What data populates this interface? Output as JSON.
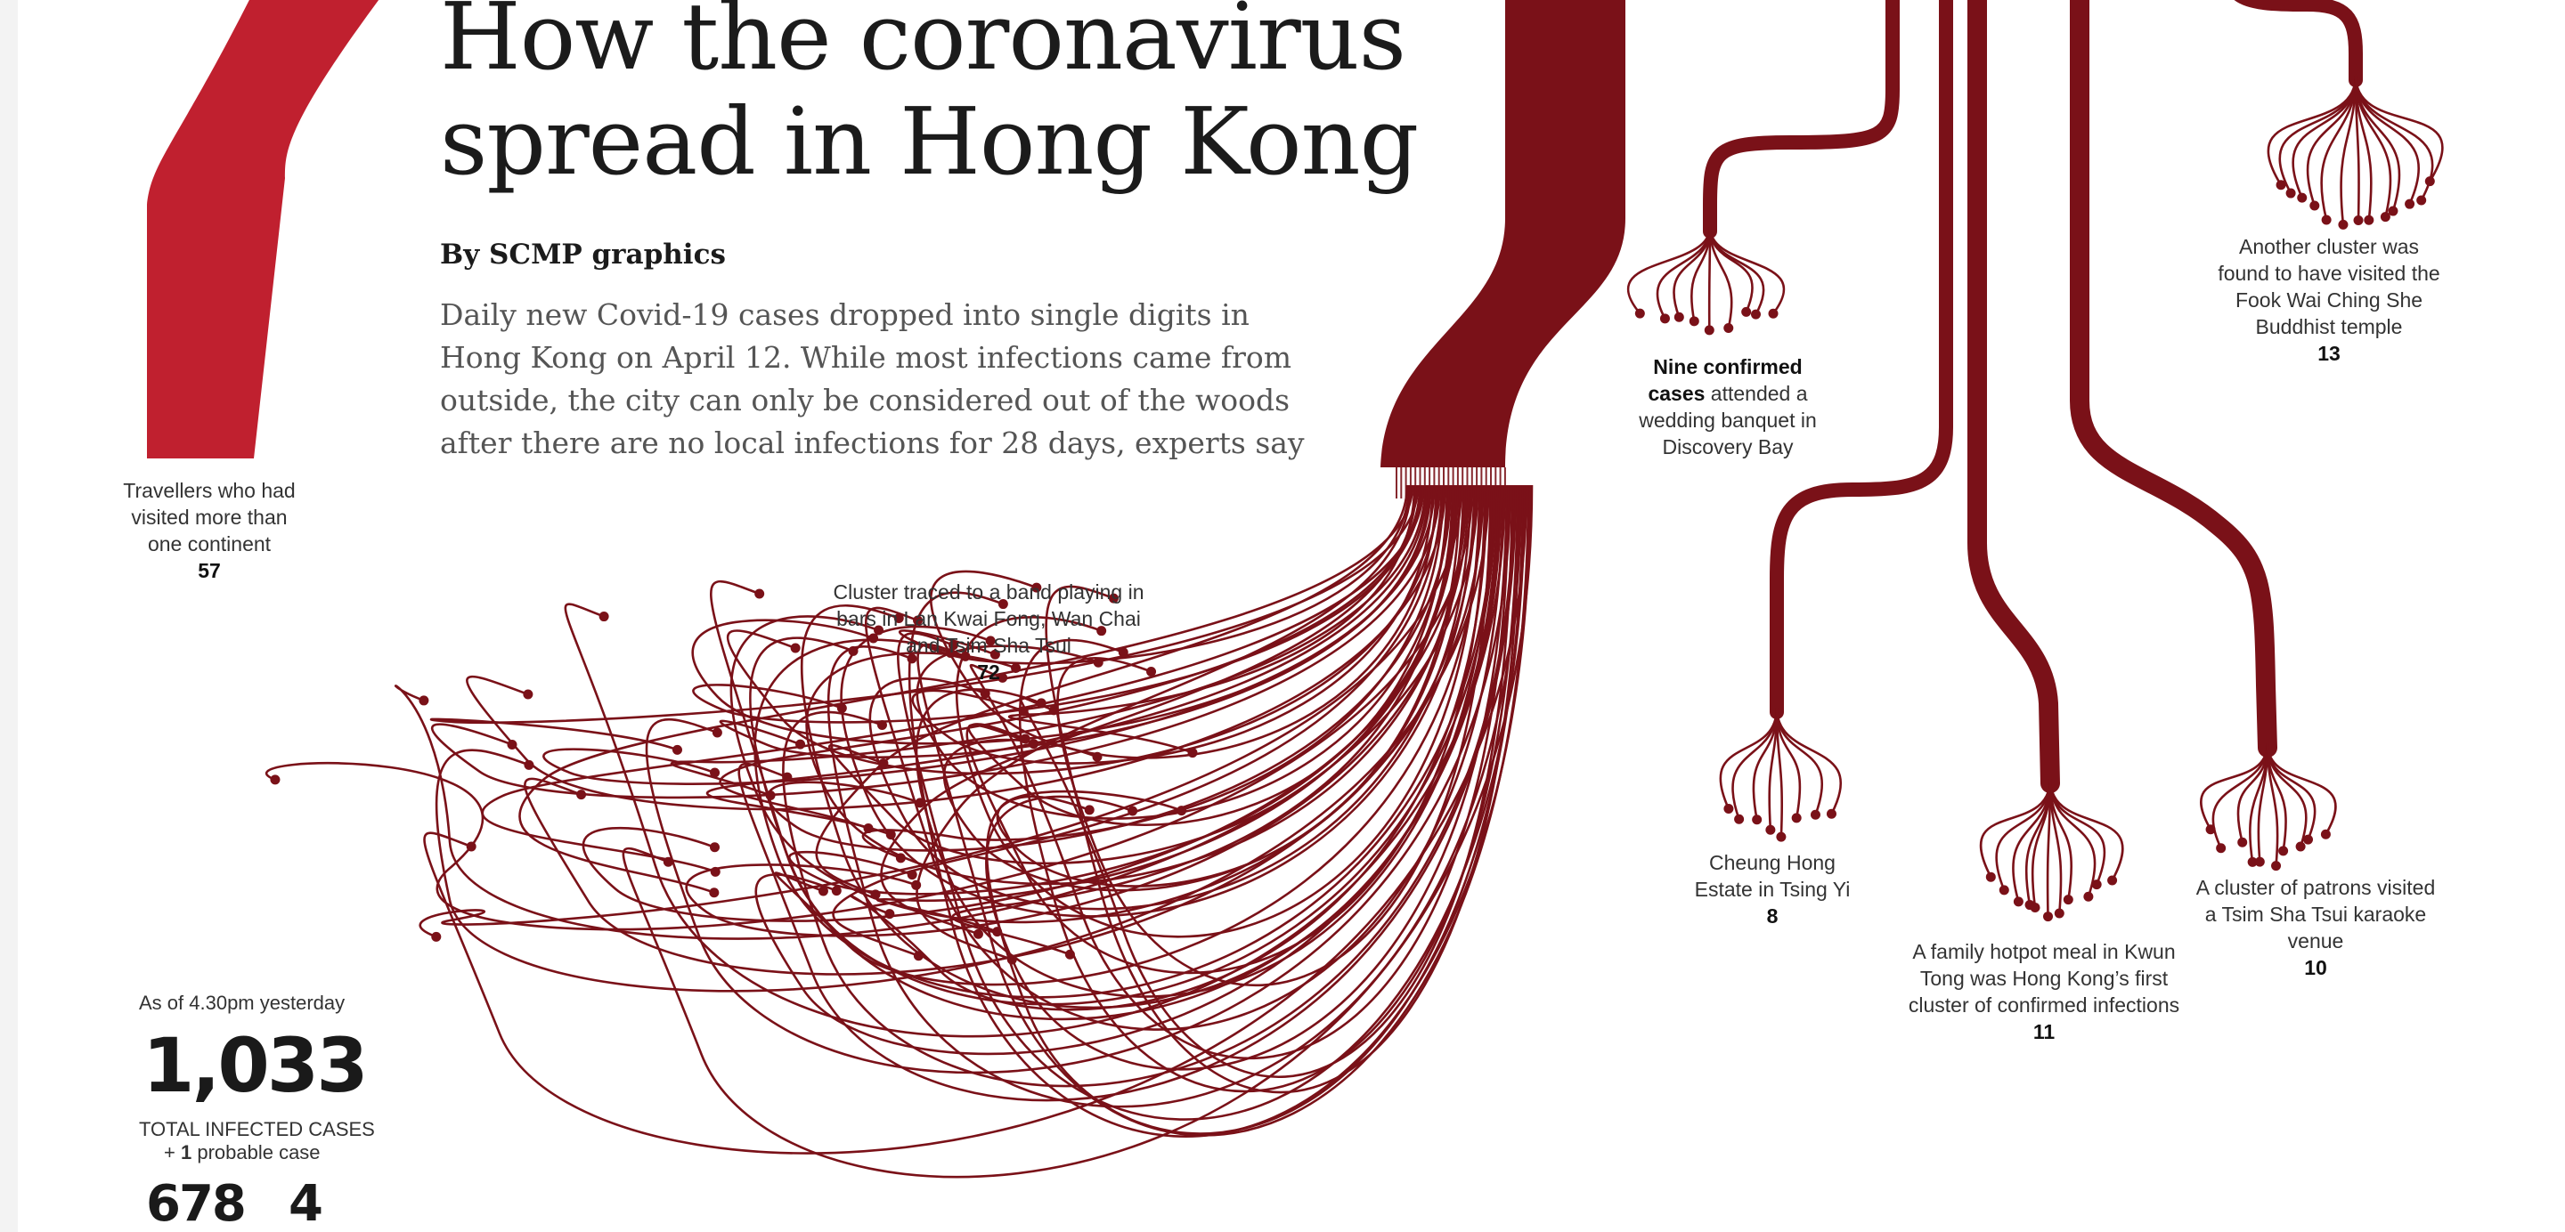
{
  "headline": {
    "line1": "How the coronavirus",
    "line2": "spread in Hong Kong"
  },
  "byline": "By SCMP graphics",
  "deck": "Daily new Covid-19 cases dropped into single digits in Hong Kong on April 12. While most infections came from outside, the city can only be considered out of the woods after there are no local infections for 28 days, experts say",
  "clusters": [
    {
      "id": "travellers",
      "label": "Travellers who had visited more than one continent",
      "count": "57"
    },
    {
      "id": "band",
      "label": "Cluster traced to a band playing in bars in Lan Kwai Fong, Wan Chai and Tsim Sha Tsui",
      "count": "72"
    },
    {
      "id": "wedding",
      "label_bold": "Nine confirmed cases",
      "label": " attended a wedding banquet in Discovery Bay",
      "count": ""
    },
    {
      "id": "temple",
      "label": "Another cluster was found to have visited the Fook Wai Ching She Buddhist temple",
      "count": "13"
    },
    {
      "id": "cheung-hong",
      "label": "Cheung Hong Estate in Tsing Yi",
      "count": "8"
    },
    {
      "id": "hotpot",
      "label": "A family hotpot meal in Kwun Tong was Hong Kong’s first cluster of confirmed infections",
      "count": "11"
    },
    {
      "id": "karaoke",
      "label": "A cluster of patrons visited a Tsim Sha Tsui karaoke venue",
      "count": "10"
    }
  ],
  "summary": {
    "asof": "As of 4.30pm yesterday",
    "total": "1,033",
    "total_label": "TOTAL INFECTED CASES",
    "probable_prefix": "+ ",
    "probable_count": "1",
    "probable_suffix": " probable case",
    "stat_a": "678",
    "stat_b": "4"
  },
  "colors": {
    "travellers": "#c0202f",
    "clusters": "#7a1118",
    "background": "#ffffff"
  }
}
